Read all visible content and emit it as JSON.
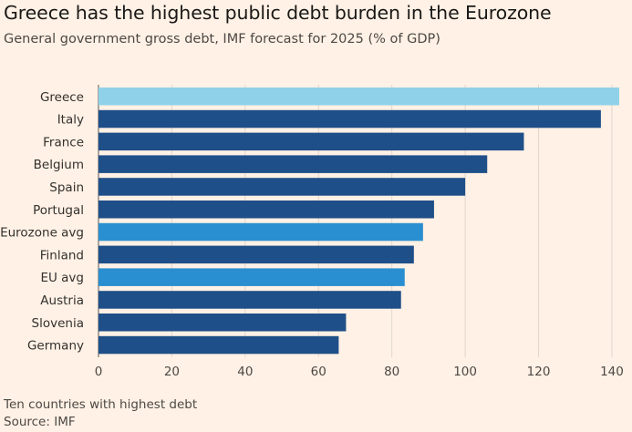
{
  "chart_data": {
    "type": "bar",
    "orientation": "horizontal",
    "title": "Greece has the highest public debt burden in the Eurozone",
    "subtitle": "General government gross debt, IMF forecast for 2025 (% of GDP)",
    "categories": [
      "Greece",
      "Italy",
      "France",
      "Belgium",
      "Spain",
      "Portugal",
      "Eurozone avg",
      "Finland",
      "EU avg",
      "Austria",
      "Slovenia",
      "Germany"
    ],
    "values": [
      142,
      137,
      116,
      106,
      100,
      91.5,
      88.5,
      86,
      83.5,
      82.5,
      67.5,
      65.5
    ],
    "bar_colors": [
      "#8fd1e8",
      "#1f4f88",
      "#1f4f88",
      "#1f4f88",
      "#1f4f88",
      "#1f4f88",
      "#2a8fd0",
      "#1f4f88",
      "#2a8fd0",
      "#1f4f88",
      "#1f4f88",
      "#1f4f88"
    ],
    "xticks": [
      0,
      20,
      40,
      60,
      80,
      100,
      120,
      140
    ],
    "xlim": [
      0,
      142
    ],
    "xlabel": "",
    "ylabel": "",
    "grid": "vertical",
    "footnote": "Ten countries with highest debt",
    "source": "Source: IMF"
  },
  "colors": {
    "background": "#fff1e5",
    "grid": "#e0d6cc",
    "axis": "#5c5752"
  }
}
